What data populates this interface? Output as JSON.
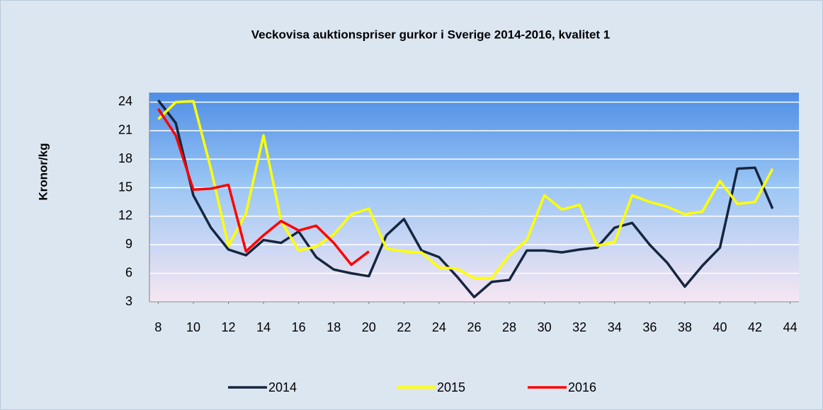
{
  "chart_data": {
    "type": "line",
    "title": "Veckovisa auktionspriser gurkor i Sverige 2014-2016, kvalitet 1",
    "y_label": "Kronor/kg",
    "x": [
      8,
      9,
      10,
      11,
      12,
      13,
      14,
      15,
      16,
      17,
      18,
      19,
      20,
      21,
      22,
      23,
      24,
      25,
      26,
      27,
      28,
      29,
      30,
      31,
      32,
      33,
      34,
      35,
      36,
      37,
      38,
      39,
      40,
      41,
      42,
      43,
      44
    ],
    "xlim": [
      7.5,
      44.5
    ],
    "xticks": [
      8,
      10,
      12,
      14,
      16,
      18,
      20,
      22,
      24,
      26,
      28,
      30,
      32,
      34,
      36,
      38,
      40,
      42,
      44
    ],
    "ylim": [
      3,
      25
    ],
    "yticks": [
      3,
      6,
      9,
      12,
      15,
      18,
      21,
      24
    ],
    "grid": true,
    "legend": "bottom",
    "series": [
      {
        "name": "2014",
        "color": "#17263f",
        "values": [
          24.2,
          21.8,
          14.2,
          10.8,
          8.5,
          7.9,
          9.5,
          9.2,
          10.4,
          7.7,
          6.4,
          6.0,
          5.7,
          10.0,
          11.7,
          8.4,
          7.7,
          5.7,
          3.5,
          5.1,
          5.3,
          8.4,
          8.4,
          8.2,
          8.5,
          8.7,
          10.8,
          11.3,
          9.0,
          7.1,
          4.6,
          6.8,
          8.7,
          17.0,
          17.1,
          12.8,
          null
        ]
      },
      {
        "name": "2015",
        "color": "#ffff00",
        "values": [
          22.2,
          24.0,
          24.1,
          17.0,
          8.9,
          12.3,
          20.5,
          11.5,
          8.4,
          8.8,
          10.1,
          12.2,
          12.8,
          8.6,
          8.3,
          8.2,
          6.6,
          6.5,
          5.5,
          5.5,
          7.9,
          9.5,
          14.2,
          12.7,
          13.2,
          8.9,
          9.3,
          14.2,
          13.5,
          13.0,
          12.2,
          12.5,
          15.7,
          13.3,
          13.5,
          17.0,
          null
        ]
      },
      {
        "name": "2016",
        "color": "#ff0000",
        "values": [
          23.3,
          20.5,
          14.8,
          14.9,
          15.3,
          8.3,
          10.0,
          11.5,
          10.5,
          11.0,
          9.2,
          6.9,
          8.3,
          null,
          null,
          null,
          null,
          null,
          null,
          null,
          null,
          null,
          null,
          null,
          null,
          null,
          null,
          null,
          null,
          null,
          null,
          null,
          null,
          null,
          null,
          null,
          null
        ]
      }
    ]
  }
}
